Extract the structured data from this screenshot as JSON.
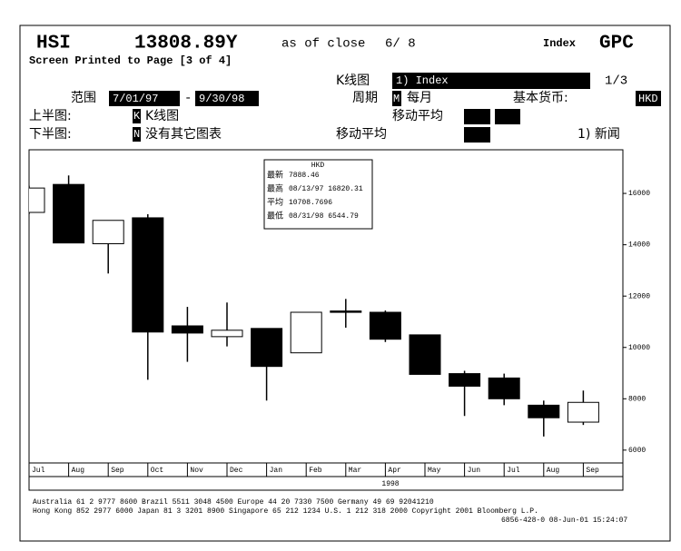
{
  "header": {
    "ticker": "HSI",
    "price": "13808.89Y",
    "as_of": "as of close",
    "date": "6/ 8",
    "market": "Index",
    "function": "GPC",
    "page_info": "Screen Printed to Page [3 of 4]"
  },
  "form": {
    "chart_type_label": "K线图",
    "chart_type_value": "1) Index",
    "page_number": "1/3",
    "range_label": "范围",
    "range_start": "7/01/97",
    "range_separator": "-",
    "range_end": "9/30/98",
    "period_label": "周期",
    "period_code": "M",
    "period_value": "每月",
    "currency_label": "基本货币:",
    "currency_value": "HKD",
    "upper_label": "上半图:",
    "upper_code": "K",
    "upper_value": "K线图",
    "ma_label_upper": "移动平均",
    "lower_label": "下半图:",
    "lower_code": "N",
    "lower_value": "没有其它图表",
    "ma_label_lower": "移动平均",
    "news": "1) 新闻"
  },
  "info_box": {
    "currency": "HKD",
    "rows": [
      {
        "label": "最新",
        "value": "7888.46"
      },
      {
        "label": "最高",
        "value": "08/13/97 16820.31"
      },
      {
        "label": "平均",
        "value": "10708.7696"
      },
      {
        "label": "最低",
        "value": "08/31/98 6544.79"
      }
    ]
  },
  "chart_data": {
    "type": "candlestick",
    "categories": [
      "Jul",
      "Aug",
      "Sep",
      "Oct",
      "Nov",
      "Dec",
      "Jan",
      "Feb",
      "Mar",
      "Apr",
      "May",
      "Jun",
      "Jul",
      "Aug",
      "Sep"
    ],
    "year_label": "1998",
    "open": [
      15260,
      16350,
      14040,
      15050,
      10840,
      10420,
      10740,
      9790,
      11420,
      11370,
      10490,
      8980,
      8810,
      7750,
      7090
    ],
    "high": [
      16300,
      16700,
      14950,
      15190,
      11580,
      11750,
      10740,
      11370,
      11890,
      11440,
      10490,
      9090,
      8980,
      7930,
      8320
    ],
    "low": [
      15200,
      14070,
      12880,
      8740,
      9440,
      10040,
      7930,
      9790,
      10770,
      10210,
      8950,
      7330,
      7750,
      6530,
      6980
    ],
    "close": [
      16210,
      14070,
      14950,
      10600,
      10560,
      10670,
      9260,
      11370,
      11380,
      10320,
      8950,
      8490,
      8000,
      7260,
      7860
    ],
    "up_color": "#ffffff",
    "down_color": "#000000",
    "ylim": [
      5500,
      17700
    ],
    "yticks": [
      6000,
      8000,
      10000,
      12000,
      14000,
      16000
    ]
  },
  "footer": [
    "Australia 61 2 9777 8600   Brazil 5511 3048 4500   Europe 44 20 7330 7500   Germany 49 69 92041210",
    "Hong Kong 852 2977 6000  Japan 81 3 3201 8900  Singapore 65 212 1234  U.S. 1 212 318 2000  Copyright 2001 Bloomberg L.P.",
    "6856-428-0 08-Jun-01 15:24:07"
  ]
}
